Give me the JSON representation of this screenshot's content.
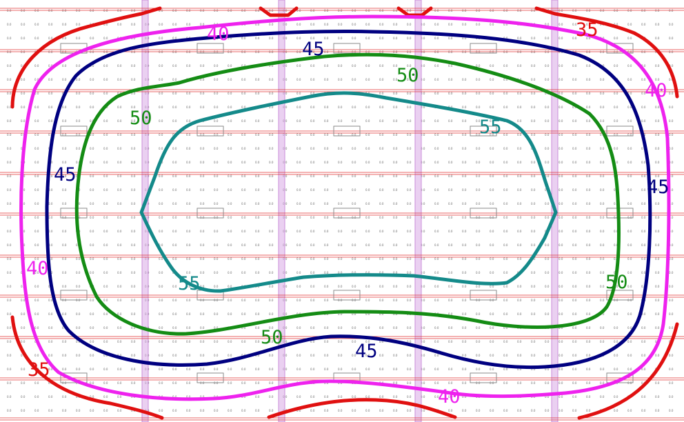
{
  "diagram": {
    "type": "isolux-contour-plan",
    "background": "#ffffff",
    "grid_cell_value": "0.0",
    "colors": {
      "row_line": "#e03232",
      "column_band": "#d9a9e6",
      "column_band_stroke": "#c98bd9",
      "fixture": "#8a8a8a",
      "grid_dot": "#6a6a6a"
    },
    "contours": [
      {
        "level": 35,
        "color": "#e01010"
      },
      {
        "level": 40,
        "color": "#ee22ee"
      },
      {
        "level": 45,
        "color": "#000080"
      },
      {
        "level": 50,
        "color": "#148c14"
      },
      {
        "level": 55,
        "color": "#148a8a"
      }
    ],
    "labels": {
      "l35a": "35",
      "l35b": "35",
      "l40a": "40",
      "l40b": "40",
      "l40c": "40",
      "l40d": "40",
      "l45a": "45",
      "l45b": "45",
      "l45c": "45",
      "l45d": "45",
      "l50a": "50",
      "l50b": "50",
      "l50c": "50",
      "l50d": "50",
      "l55a": "55",
      "l55b": "55"
    }
  }
}
